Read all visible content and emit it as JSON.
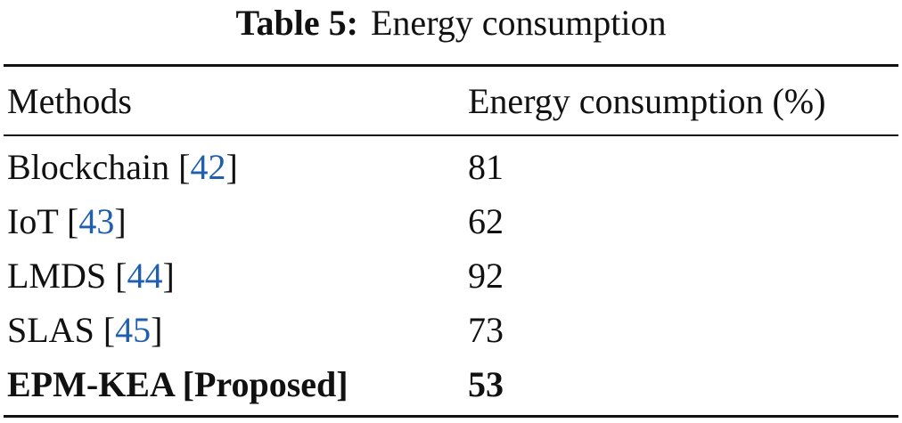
{
  "caption": {
    "label": "Table 5:",
    "text": "Energy consumption"
  },
  "table": {
    "headers": [
      "Methods",
      "Energy consumption (%)"
    ],
    "rows": [
      {
        "method": "Blockchain",
        "ref": "[42]",
        "value": 81
      },
      {
        "method": "IoT",
        "ref": "[43]",
        "value": 62
      },
      {
        "method": "LMDS",
        "ref": "[44]",
        "value": 92
      },
      {
        "method": "SLAS",
        "ref": "[45]",
        "value": 73
      },
      {
        "method": "EPM-KEA [Proposed]",
        "value": 53,
        "bold": true
      }
    ]
  }
}
